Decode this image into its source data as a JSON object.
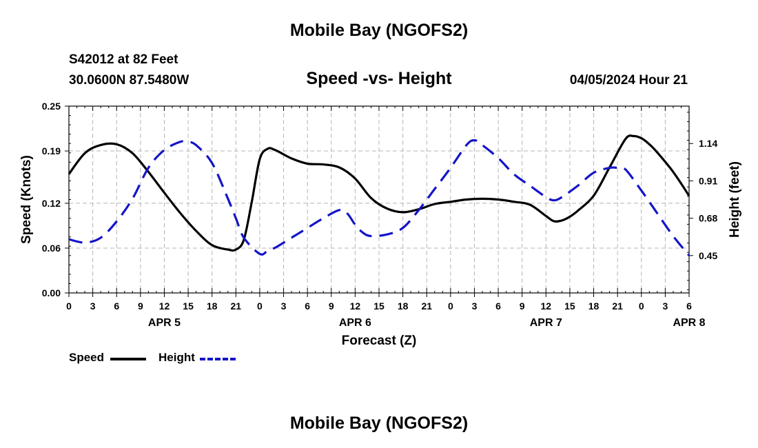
{
  "header": {
    "title": "Mobile Bay (NGOFS2)",
    "station": "S42012 at 82 Feet",
    "coordinates": "30.0600N  87.5480W",
    "subtitle": "Speed -vs- Height",
    "timestamp": "04/05/2024 Hour 21"
  },
  "footer": {
    "title": "Mobile Bay (NGOFS2)"
  },
  "legend": {
    "speed_label": "Speed",
    "height_label": "Height"
  },
  "colors": {
    "speed": "#000000",
    "height": "#1414c8",
    "grid": "#b4b4b4"
  },
  "chart_data": {
    "type": "line",
    "xlabel": "Forecast (Z)",
    "ylabel_left": "Speed (Knots)",
    "ylabel_right": "Height (feet)",
    "x_ticks": [
      "0",
      "3",
      "6",
      "9",
      "12",
      "15",
      "18",
      "21",
      "0",
      "3",
      "6",
      "9",
      "12",
      "15",
      "18",
      "21",
      "0",
      "3",
      "6",
      "9",
      "12",
      "15",
      "18",
      "21",
      "0",
      "3",
      "6"
    ],
    "day_labels": [
      {
        "label": "APR 5",
        "hour": 12
      },
      {
        "label": "APR 6",
        "hour": 36
      },
      {
        "label": "APR 7",
        "hour": 60
      },
      {
        "label": "APR 8",
        "hour": 78
      }
    ],
    "xlim": [
      0,
      78
    ],
    "ylim_left": [
      0,
      0.25
    ],
    "y_ticks_left": [
      "0.00",
      "0.06",
      "0.12",
      "0.19",
      "0.25"
    ],
    "ylim_right": [
      0.22,
      1.37
    ],
    "y_ticks_right": [
      {
        "label": "0.45",
        "value": 0.45
      },
      {
        "label": "0.68",
        "value": 0.68
      },
      {
        "label": "0.91",
        "value": 0.91
      },
      {
        "label": "1.14",
        "value": 1.14
      }
    ],
    "grid": true,
    "series": [
      {
        "name": "Speed",
        "axis": "left",
        "style": "solid",
        "x": [
          0,
          2,
          4,
          6,
          8,
          10,
          12,
          14,
          16,
          18,
          20,
          21,
          22,
          23,
          24,
          25,
          26,
          28,
          30,
          32,
          34,
          36,
          38,
          40,
          42,
          44,
          46,
          48,
          50,
          52,
          54,
          56,
          58,
          60,
          61,
          62,
          63,
          64,
          66,
          68,
          70,
          71,
          72,
          73,
          74,
          76,
          78
        ],
        "y": [
          0.159,
          0.187,
          0.198,
          0.199,
          0.187,
          0.162,
          0.134,
          0.107,
          0.083,
          0.064,
          0.058,
          0.058,
          0.071,
          0.122,
          0.179,
          0.193,
          0.191,
          0.18,
          0.173,
          0.172,
          0.168,
          0.153,
          0.127,
          0.113,
          0.108,
          0.112,
          0.119,
          0.122,
          0.125,
          0.126,
          0.125,
          0.122,
          0.118,
          0.103,
          0.096,
          0.097,
          0.102,
          0.11,
          0.13,
          0.168,
          0.206,
          0.21,
          0.207,
          0.199,
          0.188,
          0.162,
          0.13
        ]
      },
      {
        "name": "Height",
        "axis": "right",
        "style": "dashed",
        "x": [
          0,
          2,
          4,
          6,
          8,
          10,
          12,
          14,
          15,
          16,
          18,
          20,
          21,
          22,
          24,
          25,
          26,
          28,
          30,
          32,
          34,
          35,
          36,
          37,
          38,
          40,
          42,
          44,
          46,
          48,
          50,
          51,
          52,
          54,
          56,
          58,
          60,
          61,
          62,
          64,
          66,
          68,
          69,
          70,
          72,
          74,
          76,
          78
        ],
        "y": [
          0.55,
          0.53,
          0.56,
          0.66,
          0.8,
          0.99,
          1.1,
          1.15,
          1.15,
          1.13,
          1.02,
          0.8,
          0.68,
          0.56,
          0.46,
          0.48,
          0.5,
          0.56,
          0.62,
          0.68,
          0.73,
          0.71,
          0.64,
          0.59,
          0.57,
          0.58,
          0.62,
          0.73,
          0.86,
          0.99,
          1.13,
          1.16,
          1.13,
          1.05,
          0.95,
          0.88,
          0.81,
          0.79,
          0.81,
          0.88,
          0.96,
          0.99,
          0.99,
          0.98,
          0.85,
          0.71,
          0.57,
          0.45
        ]
      }
    ]
  }
}
